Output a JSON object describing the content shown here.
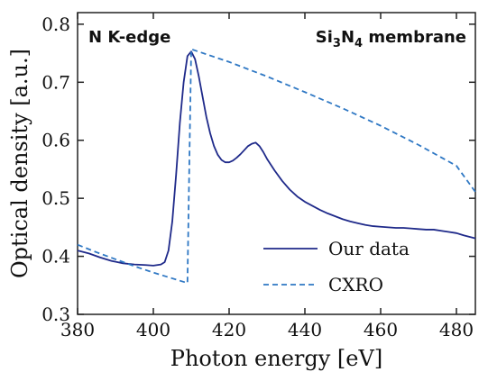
{
  "chart_data": {
    "type": "line",
    "xlabel": "Photon energy [eV]",
    "ylabel": "Optical density [a.u.]",
    "xlim": [
      380,
      485
    ],
    "ylim": [
      0.3,
      0.82
    ],
    "x_ticks": [
      380,
      400,
      420,
      440,
      460,
      480
    ],
    "y_ticks": [
      0.3,
      0.4,
      0.5,
      0.6,
      0.7,
      0.8
    ],
    "x_tick_labels": [
      "380",
      "400",
      "420",
      "440",
      "460",
      "480"
    ],
    "y_tick_labels": [
      "0.3",
      "0.4",
      "0.5",
      "0.6",
      "0.7",
      "0.8"
    ],
    "grid": false,
    "legend_position": "lower-right",
    "annotations": {
      "left": "N K-edge",
      "right": {
        "pre": "Si",
        "sub1": "3",
        "mid": "N",
        "sub2": "4",
        "post": " membrane"
      }
    },
    "series": [
      {
        "name": "Our data",
        "color": "#1f2a8a",
        "style": "solid",
        "x": [
          380,
          383,
          386,
          389,
          392,
          395,
          398,
          400,
          402,
          403,
          404,
          405,
          406,
          407,
          408,
          409,
          410,
          411,
          412,
          413,
          414,
          415,
          416,
          417,
          418,
          419,
          420,
          421,
          422,
          423,
          424,
          425,
          426,
          427,
          428,
          429,
          430,
          432,
          434,
          436,
          438,
          440,
          442,
          444,
          446,
          448,
          450,
          452,
          454,
          456,
          458,
          460,
          462,
          464,
          466,
          468,
          470,
          472,
          474,
          476,
          478,
          480,
          482,
          485
        ],
        "y": [
          0.41,
          0.405,
          0.398,
          0.392,
          0.388,
          0.386,
          0.385,
          0.384,
          0.386,
          0.39,
          0.41,
          0.46,
          0.54,
          0.63,
          0.7,
          0.745,
          0.753,
          0.74,
          0.71,
          0.675,
          0.64,
          0.612,
          0.59,
          0.575,
          0.566,
          0.562,
          0.562,
          0.565,
          0.57,
          0.576,
          0.583,
          0.59,
          0.594,
          0.596,
          0.59,
          0.58,
          0.568,
          0.548,
          0.53,
          0.515,
          0.503,
          0.494,
          0.487,
          0.48,
          0.474,
          0.469,
          0.464,
          0.46,
          0.457,
          0.454,
          0.452,
          0.451,
          0.45,
          0.449,
          0.449,
          0.448,
          0.447,
          0.446,
          0.446,
          0.444,
          0.442,
          0.44,
          0.436,
          0.431
        ]
      },
      {
        "name": "CXRO",
        "color": "#2f78c4",
        "style": "dashed",
        "x": [
          380,
          385,
          390,
          395,
          400,
          405,
          409,
          409.5,
          410,
          420,
          430,
          440,
          450,
          460,
          470,
          480,
          485
        ],
        "y": [
          0.42,
          0.407,
          0.395,
          0.383,
          0.372,
          0.362,
          0.354,
          0.56,
          0.757,
          0.735,
          0.71,
          0.683,
          0.655,
          0.625,
          0.592,
          0.556,
          0.511
        ]
      }
    ]
  }
}
